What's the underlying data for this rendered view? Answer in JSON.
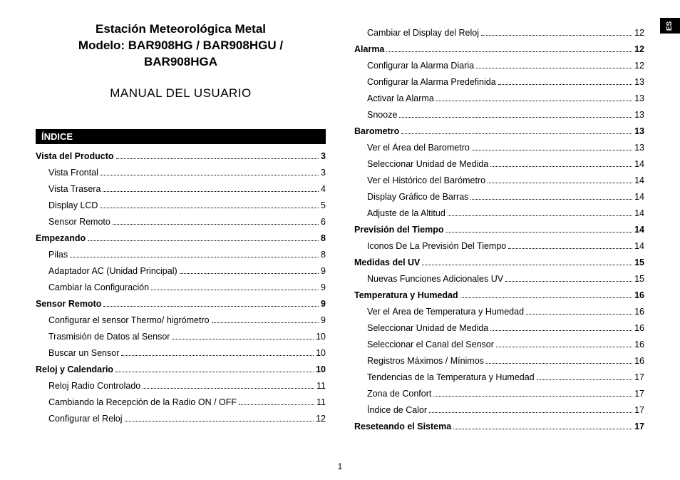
{
  "sideTab": "ES",
  "title": {
    "line1": "Estación Meteorológica Metal",
    "line2": "Modelo: BAR908HG / BAR908HGU /",
    "line3": "BAR908HGA"
  },
  "subtitle": "MANUAL DEL USUARIO",
  "indexHeader": "ÍNDICE",
  "pageNumber": "1",
  "col1": [
    {
      "label": "Vista del Producto",
      "page": "3",
      "bold": true
    },
    {
      "label": "Vista Frontal",
      "page": "3",
      "sub": true
    },
    {
      "label": "Vista Trasera",
      "page": "4",
      "sub": true
    },
    {
      "label": "Display LCD",
      "page": "5",
      "sub": true
    },
    {
      "label": "Sensor Remoto",
      "page": "6",
      "sub": true
    },
    {
      "label": "Empezando",
      "page": "8",
      "bold": true
    },
    {
      "label": "Pilas",
      "page": "8",
      "sub": true
    },
    {
      "label": "Adaptador AC (Unidad Principal)",
      "page": "9",
      "sub": true
    },
    {
      "label": "Cambiar la Configuración",
      "page": "9",
      "sub": true
    },
    {
      "label": "Sensor Remoto",
      "page": "9",
      "bold": true
    },
    {
      "label": "Configurar el sensor Thermo/ higrómetro",
      "page": "9",
      "sub": true
    },
    {
      "label": "Trasmisión de Datos al Sensor",
      "page": "10",
      "sub": true
    },
    {
      "label": "Buscar un Sensor",
      "page": "10",
      "sub": true
    },
    {
      "label": "Reloj y Calendario",
      "page": "10",
      "bold": true
    },
    {
      "label": "Reloj Radio Controlado",
      "page": "11",
      "sub": true
    },
    {
      "label": "Cambiando la Recepción de la Radio ON / OFF",
      "page": "11",
      "sub": true
    },
    {
      "label": "Configurar el Reloj",
      "page": "12",
      "sub": true
    }
  ],
  "col2": [
    {
      "label": "Cambiar el  Display del Reloj",
      "page": "12",
      "sub": true
    },
    {
      "label": "Alarma",
      "page": "12",
      "bold": true
    },
    {
      "label": "Configurar la Alarma Diaria",
      "page": "12",
      "sub": true
    },
    {
      "label": "Configurar la Alarma Predefinida",
      "page": "13",
      "sub": true
    },
    {
      "label": "Activar la Alarma",
      "page": "13",
      "sub": true
    },
    {
      "label": "Snooze",
      "page": "13",
      "sub": true
    },
    {
      "label": "Barometro",
      "page": "13",
      "bold": true
    },
    {
      "label": "Ver el Área del Barometro",
      "page": "13",
      "sub": true
    },
    {
      "label": "Seleccionar Unidad de Medida",
      "page": "14",
      "sub": true
    },
    {
      "label": "Ver el Histórico del Barómetro",
      "page": "14",
      "sub": true
    },
    {
      "label": "Display Gráfico de Barras",
      "page": "14",
      "sub": true
    },
    {
      "label": "Adjuste de la Altitud",
      "page": "14",
      "sub": true
    },
    {
      "label": "Previsión del Tiempo",
      "page": "14",
      "bold": true
    },
    {
      "label": "Iconos De La Previsión Del Tiempo",
      "page": "14",
      "sub": true
    },
    {
      "label": "Medidas del UV",
      "page": "15",
      "bold": true
    },
    {
      "label": "Nuevas Funciones Adicionales UV",
      "page": "15",
      "sub": true
    },
    {
      "label": "Temperatura y Humedad",
      "page": "16",
      "bold": true
    },
    {
      "label": "Ver el Área de Temperatura y Humedad",
      "page": "16",
      "sub": true
    },
    {
      "label": "Seleccionar Unidad de Medida",
      "page": "16",
      "sub": true
    },
    {
      "label": "Seleccionar el Canal del Sensor",
      "page": "16",
      "sub": true
    },
    {
      "label": "Registros Máximos / Mínimos",
      "page": "16",
      "sub": true
    },
    {
      "label": "Tendencias de la Temperatura y Humedad",
      "page": "17",
      "sub": true
    },
    {
      "label": "Zona de Confort",
      "page": "17",
      "sub": true
    },
    {
      "label": "Índice de Calor",
      "page": "17",
      "sub": true
    },
    {
      "label": "Reseteando el Sistema",
      "page": "17",
      "bold": true
    }
  ]
}
